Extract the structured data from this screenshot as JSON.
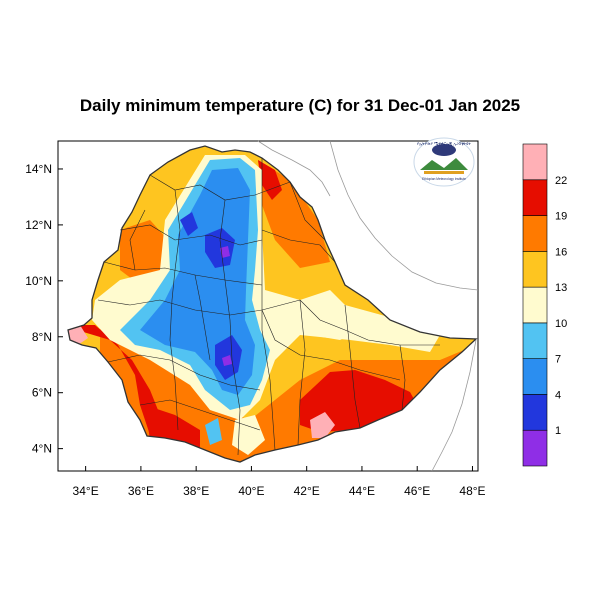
{
  "title": "Daily minimum temperature (C) for 31 Dec-01 Jan 2025",
  "map": {
    "lon_range": [
      33,
      48.2
    ],
    "lat_range": [
      3.2,
      15
    ],
    "lon_ticks": [
      {
        "value": 34,
        "label": "34°E"
      },
      {
        "value": 36,
        "label": "36°E"
      },
      {
        "value": 38,
        "label": "38°E"
      },
      {
        "value": 40,
        "label": "40°E"
      },
      {
        "value": 42,
        "label": "42°E"
      },
      {
        "value": 44,
        "label": "44°E"
      },
      {
        "value": 46,
        "label": "46°E"
      },
      {
        "value": 48,
        "label": "48°E"
      }
    ],
    "lat_ticks": [
      {
        "value": 4,
        "label": "4°N"
      },
      {
        "value": 6,
        "label": "6°N"
      },
      {
        "value": 8,
        "label": "8°N"
      },
      {
        "value": 10,
        "label": "10°N"
      },
      {
        "value": 12,
        "label": "12°N"
      },
      {
        "value": 14,
        "label": "14°N"
      }
    ]
  },
  "colorbar": {
    "levels": [
      "1",
      "4",
      "7",
      "10",
      "13",
      "16",
      "19",
      "22"
    ],
    "colors": [
      "#8f2ee6",
      "#2237dd",
      "#2b8ef0",
      "#52c3f2",
      "#fffbcf",
      "#fec520",
      "#ff7a00",
      "#e60d00",
      "#ffb0b6"
    ]
  },
  "logo": {
    "lines": [
      "የኢትዮጵያ ሜቲዎሮሎጂ ኢንስቲትዩት",
      "Ethiopian Meteorology Institute"
    ]
  }
}
